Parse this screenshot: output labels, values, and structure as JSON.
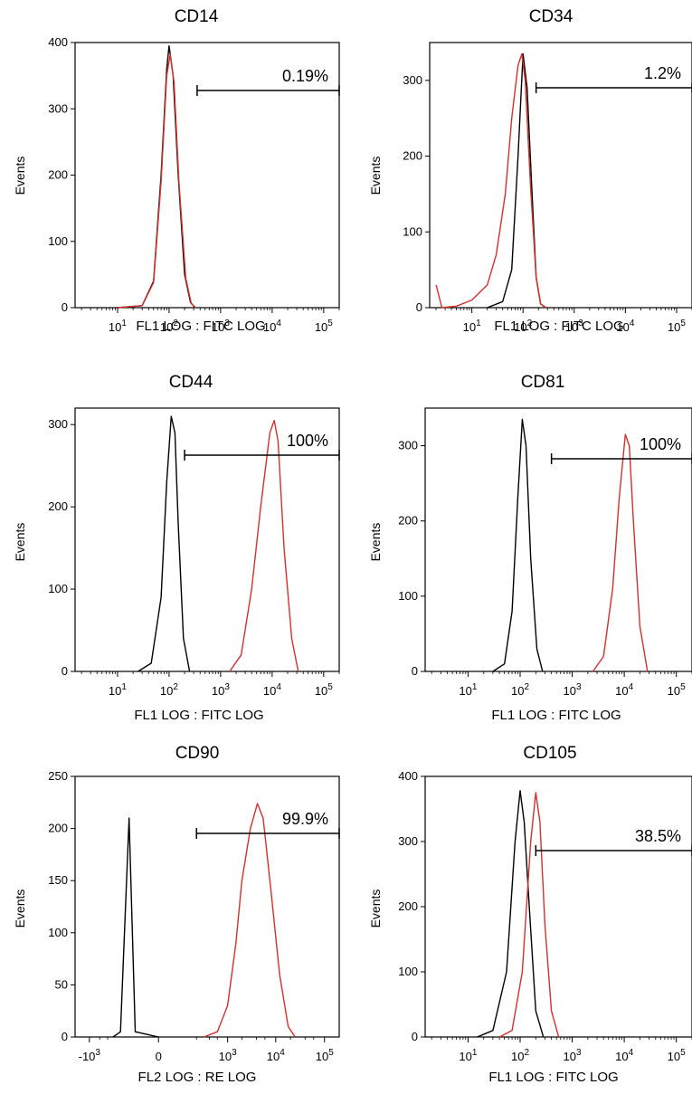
{
  "chart_data": [
    {
      "title": "CD14",
      "type": "area",
      "xscale": "log",
      "xticks": [
        "10^1",
        "10^2",
        "10^3",
        "10^4",
        "10^5"
      ],
      "xlabel": "FL1 LOG : FITC LOG",
      "ylabel": "Events",
      "ylim": [
        0,
        400
      ],
      "yticks": [
        0,
        100,
        200,
        300,
        400
      ],
      "gate": {
        "label": "0.19%",
        "x_from": 350,
        "x_to": 200000
      },
      "series": [
        {
          "color": "#000000",
          "points": [
            [
              10,
              0
            ],
            [
              30,
              3
            ],
            [
              50,
              40
            ],
            [
              70,
              200
            ],
            [
              90,
              360
            ],
            [
              100,
              395
            ],
            [
              120,
              350
            ],
            [
              150,
              200
            ],
            [
              200,
              50
            ],
            [
              260,
              8
            ],
            [
              320,
              0
            ]
          ]
        },
        {
          "color": "#d32f2f",
          "points": [
            [
              10,
              0
            ],
            [
              30,
              3
            ],
            [
              50,
              38
            ],
            [
              70,
              190
            ],
            [
              90,
              350
            ],
            [
              105,
              382
            ],
            [
              125,
              340
            ],
            [
              155,
              190
            ],
            [
              210,
              45
            ],
            [
              270,
              6
            ],
            [
              330,
              0
            ]
          ]
        }
      ]
    },
    {
      "title": "CD34",
      "type": "area",
      "xscale": "log",
      "xticks": [
        "10^1",
        "10^2",
        "10^3",
        "10^4",
        "10^5"
      ],
      "xlabel": "FL1 LOG : FITC LOG",
      "ylabel": "Events",
      "ylim": [
        0,
        350
      ],
      "yticks": [
        0,
        100,
        200,
        300
      ],
      "gate": {
        "label": "1.2%",
        "x_from": 180,
        "x_to": 200000
      },
      "series": [
        {
          "color": "#000000",
          "points": [
            [
              20,
              0
            ],
            [
              40,
              8
            ],
            [
              60,
              50
            ],
            [
              80,
              200
            ],
            [
              100,
              335
            ],
            [
              120,
              290
            ],
            [
              150,
              150
            ],
            [
              180,
              40
            ],
            [
              220,
              5
            ],
            [
              280,
              0
            ]
          ]
        },
        {
          "color": "#d32f2f",
          "points": [
            [
              2,
              30
            ],
            [
              2.6,
              0
            ],
            [
              5,
              2
            ],
            [
              10,
              10
            ],
            [
              20,
              30
            ],
            [
              30,
              70
            ],
            [
              45,
              150
            ],
            [
              60,
              250
            ],
            [
              80,
              320
            ],
            [
              95,
              335
            ],
            [
              110,
              300
            ],
            [
              140,
              160
            ],
            [
              180,
              40
            ],
            [
              220,
              5
            ],
            [
              280,
              0
            ]
          ]
        }
      ]
    },
    {
      "title": "CD44",
      "type": "area",
      "xscale": "log",
      "xticks": [
        "10^1",
        "10^2",
        "10^3",
        "10^4",
        "10^5"
      ],
      "xlabel": "FL1 LOG : FITC LOG",
      "ylabel": "Events",
      "ylim": [
        0,
        320
      ],
      "yticks": [
        0,
        100,
        200,
        300
      ],
      "gate": {
        "label": "100%",
        "x_from": 200,
        "x_to": 200000
      },
      "series": [
        {
          "color": "#000000",
          "points": [
            [
              25,
              0
            ],
            [
              45,
              10
            ],
            [
              70,
              90
            ],
            [
              90,
              230
            ],
            [
              110,
              310
            ],
            [
              130,
              290
            ],
            [
              150,
              180
            ],
            [
              190,
              40
            ],
            [
              250,
              0
            ]
          ]
        },
        {
          "color": "#d32f2f",
          "points": [
            [
              1500,
              0
            ],
            [
              2500,
              20
            ],
            [
              4000,
              100
            ],
            [
              6000,
              200
            ],
            [
              9000,
              290
            ],
            [
              11000,
              305
            ],
            [
              13000,
              280
            ],
            [
              17000,
              150
            ],
            [
              24000,
              40
            ],
            [
              32000,
              0
            ]
          ]
        }
      ]
    },
    {
      "title": "CD81",
      "type": "area",
      "xscale": "log",
      "xticks": [
        "10^1",
        "10^2",
        "10^3",
        "10^4",
        "10^5"
      ],
      "xlabel": "FL1 LOG : FITC LOG",
      "ylabel": "Events",
      "ylim": [
        0,
        350
      ],
      "yticks": [
        0,
        100,
        200,
        300
      ],
      "gate": {
        "label": "100%",
        "x_from": 400,
        "x_to": 200000
      },
      "series": [
        {
          "color": "#000000",
          "points": [
            [
              30,
              0
            ],
            [
              50,
              10
            ],
            [
              70,
              80
            ],
            [
              90,
              230
            ],
            [
              110,
              335
            ],
            [
              130,
              300
            ],
            [
              160,
              150
            ],
            [
              210,
              30
            ],
            [
              270,
              0
            ]
          ]
        },
        {
          "color": "#d32f2f",
          "points": [
            [
              2500,
              0
            ],
            [
              4000,
              20
            ],
            [
              6000,
              110
            ],
            [
              8000,
              230
            ],
            [
              10500,
              315
            ],
            [
              12500,
              300
            ],
            [
              15000,
              200
            ],
            [
              20000,
              60
            ],
            [
              28000,
              0
            ]
          ]
        }
      ]
    },
    {
      "title": "CD90",
      "type": "area",
      "xscale": "biexponential",
      "xticks": [
        "-10^3",
        "0",
        "10^3",
        "10^4",
        "10^5"
      ],
      "xlabel": "FL2 LOG : RE LOG",
      "ylabel": "Events",
      "ylim": [
        0,
        250
      ],
      "yticks": [
        0,
        50,
        100,
        150,
        200,
        250
      ],
      "gate": {
        "label": "99.9%",
        "x_from": 200,
        "x_to": 200000
      },
      "series": [
        {
          "color": "#000000",
          "points": [
            [
              -300,
              0
            ],
            [
              -200,
              5
            ],
            [
              -120,
              210
            ],
            [
              -80,
              5
            ],
            [
              0,
              0
            ]
          ]
        },
        {
          "color": "#d32f2f",
          "points": [
            [
              300,
              0
            ],
            [
              600,
              5
            ],
            [
              1000,
              30
            ],
            [
              1500,
              90
            ],
            [
              2000,
              150
            ],
            [
              3000,
              200
            ],
            [
              4200,
              224
            ],
            [
              5500,
              210
            ],
            [
              8000,
              140
            ],
            [
              12000,
              60
            ],
            [
              18000,
              10
            ],
            [
              25000,
              0
            ]
          ]
        }
      ]
    },
    {
      "title": "CD105",
      "type": "area",
      "xscale": "log",
      "xticks": [
        "10^1",
        "10^2",
        "10^3",
        "10^4",
        "10^5"
      ],
      "xlabel": "FL1 LOG : FITC LOG",
      "ylabel": "Events",
      "ylim": [
        0,
        400
      ],
      "yticks": [
        0,
        100,
        200,
        300,
        400
      ],
      "gate": {
        "label": "38.5%",
        "x_from": 200,
        "x_to": 200000
      },
      "series": [
        {
          "color": "#000000",
          "points": [
            [
              15,
              0
            ],
            [
              30,
              10
            ],
            [
              55,
              100
            ],
            [
              80,
              300
            ],
            [
              100,
              378
            ],
            [
              120,
              330
            ],
            [
              150,
              200
            ],
            [
              200,
              40
            ],
            [
              280,
              0
            ]
          ]
        },
        {
          "color": "#d32f2f",
          "points": [
            [
              40,
              0
            ],
            [
              70,
              10
            ],
            [
              110,
              100
            ],
            [
              160,
              300
            ],
            [
              200,
              375
            ],
            [
              240,
              330
            ],
            [
              300,
              170
            ],
            [
              400,
              40
            ],
            [
              550,
              0
            ]
          ]
        }
      ]
    }
  ]
}
